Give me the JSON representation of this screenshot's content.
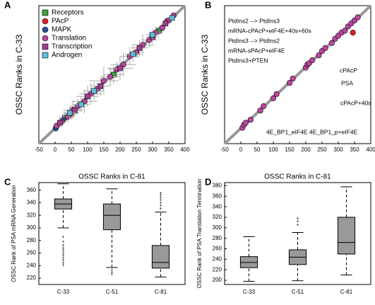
{
  "chart_data": [
    {
      "type": "scatter",
      "panel": "A",
      "ylabel": "OSSC Ranks in C-33",
      "xlim": [
        -50,
        400
      ],
      "ylim": [
        -50,
        400
      ],
      "xticks": [
        -50,
        0,
        50,
        100,
        150,
        200,
        250,
        300,
        350,
        400
      ],
      "legend": "upper left",
      "series": [
        {
          "name": "Receptors",
          "marker": "square",
          "color": "#3aa33a",
          "x": [
            30,
            180,
            320
          ],
          "values": [
            35,
            175,
            318
          ],
          "err": [
            20,
            30,
            15
          ]
        },
        {
          "name": "PAcP",
          "marker": "circle",
          "color": "#e0202a",
          "x": [
            50,
            345
          ],
          "values": [
            48,
            350
          ],
          "err": [
            20,
            10
          ]
        },
        {
          "name": "MAPK",
          "marker": "circle",
          "color": "#2b4fa0",
          "x": [
            2,
            25
          ],
          "values": [
            0,
            28
          ],
          "err": [
            10,
            15
          ]
        },
        {
          "name": "Translation",
          "marker": "circle",
          "color": "#b9479f",
          "x": [
            5,
            20,
            40,
            55,
            70,
            90,
            110,
            130,
            150,
            170,
            190,
            210,
            230,
            250,
            270,
            290,
            310,
            330,
            350,
            365
          ],
          "values": [
            8,
            22,
            38,
            60,
            72,
            88,
            112,
            128,
            155,
            168,
            192,
            208,
            235,
            248,
            272,
            288,
            312,
            328,
            352,
            368
          ],
          "err": [
            10,
            15,
            20,
            30,
            25,
            40,
            35,
            20,
            45,
            30,
            25,
            40,
            30,
            20,
            35,
            25,
            20,
            15,
            10,
            8
          ]
        },
        {
          "name": "Transcription",
          "marker": "square",
          "color": "#a0408f",
          "x": [
            15,
            60,
            100,
            140,
            200,
            260,
            300,
            340
          ],
          "values": [
            18,
            58,
            104,
            138,
            196,
            262,
            298,
            342
          ],
          "err": [
            15,
            20,
            35,
            30,
            40,
            25,
            20,
            10
          ]
        },
        {
          "name": "Androgen",
          "marker": "square",
          "color": "#5fc0e0",
          "x": [
            45,
            80,
            120,
            240,
            300,
            360
          ],
          "values": [
            50,
            78,
            122,
            242,
            305,
            360
          ],
          "err": [
            20,
            25,
            30,
            25,
            20,
            10
          ]
        }
      ]
    },
    {
      "type": "scatter",
      "panel": "B",
      "ylabel": "OSSC Ranks in C-33",
      "xlim": [
        -50,
        400
      ],
      "ylim": [
        -50,
        400
      ],
      "xticks": [
        -50,
        0,
        50,
        100,
        150,
        200,
        250,
        300,
        350,
        400
      ],
      "series": [
        {
          "marker": "circle",
          "color": "#b9479f",
          "x": [
            5,
            10,
            15,
            30,
            60,
            70,
            100,
            110,
            150,
            160,
            200,
            205,
            210,
            220,
            240,
            250,
            260,
            280,
            290,
            300,
            310,
            320,
            330,
            340,
            350,
            360
          ],
          "values": [
            2,
            12,
            18,
            28,
            58,
            72,
            98,
            112,
            148,
            162,
            198,
            208,
            212,
            222,
            238,
            252,
            262,
            278,
            292,
            302,
            312,
            318,
            332,
            342,
            352,
            362
          ]
        },
        {
          "marker": "circle",
          "color": "#e0202a",
          "x": [
            345
          ],
          "values": [
            312
          ]
        }
      ],
      "annotations": [
        "PtdIns2 --> PtdIns3",
        "mRNA-cPAcP+eIF4E+40s+60s",
        "PtdIns3 --> PtdIns2",
        "mRNA-sPAcP+eIF4E",
        "PtdIns3+PTEN",
        "cPAcP",
        "PSA",
        "cPAcP+40s",
        "4E_BP1_eIF4E",
        "4E_BP1_p+eIF4E"
      ]
    },
    {
      "type": "box",
      "panel": "C",
      "title": "OSSC Ranks in C-81",
      "ylabel": "OSSC Rank of PSA mRNA Generation",
      "categories": [
        "C-33",
        "C-51",
        "C-81"
      ],
      "ylim": [
        210,
        372
      ],
      "yticks": [
        220,
        240,
        260,
        280,
        300,
        320,
        340,
        360
      ],
      "boxes": [
        {
          "whislo": 300,
          "q1": 330,
          "med": 338,
          "q3": 346,
          "whishi": 370,
          "fliers": [
            285,
            278,
            272,
            268,
            264,
            260,
            256,
            252,
            248,
            244,
            240
          ]
        },
        {
          "whislo": 237,
          "q1": 297,
          "med": 320,
          "q3": 338,
          "whishi": 362,
          "fliers": [
            233,
            229,
            226
          ]
        },
        {
          "whislo": 222,
          "q1": 236,
          "med": 245,
          "q3": 272,
          "whishi": 325,
          "fliers": [
            330,
            335,
            340,
            344,
            348,
            352,
            355
          ]
        }
      ]
    },
    {
      "type": "box",
      "panel": "D",
      "title": "OSSC Ranks in C-81",
      "ylabel": "OSSC Rank of PSA Translation Termination",
      "categories": [
        "C-33",
        "C-51",
        "C-81"
      ],
      "ylim": [
        192,
        386
      ],
      "yticks": [
        200,
        220,
        240,
        260,
        280,
        300,
        320,
        340,
        360,
        380
      ],
      "boxes": [
        {
          "whislo": 198,
          "q1": 224,
          "med": 234,
          "q3": 245,
          "whishi": 283,
          "fliers": []
        },
        {
          "whislo": 199,
          "q1": 230,
          "med": 244,
          "q3": 258,
          "whishi": 291,
          "fliers": [
            305,
            312,
            318
          ]
        },
        {
          "whislo": 210,
          "q1": 250,
          "med": 272,
          "q3": 320,
          "whishi": 378,
          "fliers": []
        }
      ]
    }
  ]
}
